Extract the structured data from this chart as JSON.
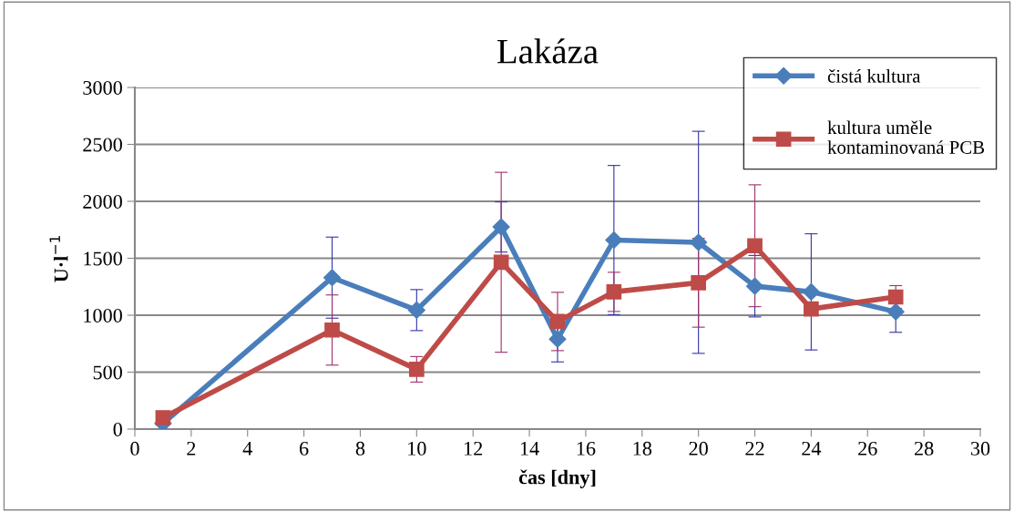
{
  "chart_data": {
    "type": "line",
    "title": "Lakáza",
    "xlabel": "čas [dny]",
    "ylabel": "U·l$^{−1}$",
    "x": [
      1,
      7,
      10,
      13,
      15,
      17,
      20,
      22,
      24,
      27
    ],
    "series": [
      {
        "name": "čistá kultura",
        "color": "#4a7ebb",
        "marker": "diamond",
        "values": [
          50,
          1330,
          1045,
          1775,
          790,
          1660,
          1640,
          1255,
          1205,
          1030
        ],
        "errors": [
          null,
          356,
          180,
          220,
          200,
          655,
          975,
          270,
          510,
          180
        ]
      },
      {
        "name": "kultura uměle kontaminovaná PCB",
        "color": "#be4b48",
        "marker": "square",
        "values": [
          100,
          870,
          525,
          1465,
          945,
          1205,
          1285,
          1610,
          1055,
          1160
        ],
        "errors": [
          null,
          308,
          112,
          790,
          256,
          172,
          390,
          535,
          null,
          100
        ]
      }
    ],
    "xlim": [
      0,
      30
    ],
    "xticks": [
      0,
      2,
      4,
      6,
      8,
      10,
      12,
      14,
      16,
      18,
      20,
      22,
      24,
      26,
      28,
      30
    ],
    "ylim": [
      0,
      3000
    ],
    "yticks": [
      0,
      500,
      1000,
      1500,
      2000,
      2500,
      3000
    ],
    "grid": "y",
    "legend": "top right",
    "line_style": "solid"
  }
}
